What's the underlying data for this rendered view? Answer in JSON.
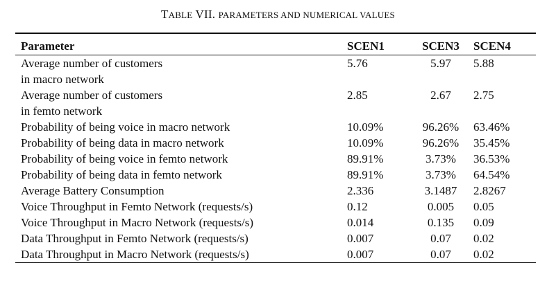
{
  "caption": {
    "prefix": "T",
    "word": "ABLE",
    "number": " VII. ",
    "title": "PARAMETERS AND NUMERICAL VALUES"
  },
  "table": {
    "headers": [
      "Parameter",
      "SCEN1",
      "SCEN3",
      "SCEN4"
    ],
    "rows": [
      {
        "param": [
          "Average number of customers",
          "in macro network"
        ],
        "values": [
          "5.76",
          "5.97",
          "5.88"
        ]
      },
      {
        "param": [
          "Average number of customers",
          "in femto network"
        ],
        "values": [
          "2.85",
          "2.67",
          "2.75"
        ]
      },
      {
        "param": [
          "Probability of being voice in macro network"
        ],
        "values": [
          "10.09%",
          "96.26%",
          "63.46%"
        ]
      },
      {
        "param": [
          "Probability of being data in macro network"
        ],
        "values": [
          "10.09%",
          "96.26%",
          "35.45%"
        ]
      },
      {
        "param": [
          "Probability of being voice in femto network"
        ],
        "values": [
          "89.91%",
          "3.73%",
          "36.53%"
        ]
      },
      {
        "param": [
          "Probability of being data in femto network"
        ],
        "values": [
          "89.91%",
          "3.73%",
          "64.54%"
        ]
      },
      {
        "param": [
          "Average Battery Consumption"
        ],
        "values": [
          "2.336",
          "3.1487",
          "2.8267"
        ]
      },
      {
        "param": [
          "Voice Throughput in Femto Network (requests/s)"
        ],
        "values": [
          "0.12",
          "0.005",
          "0.05"
        ]
      },
      {
        "param": [
          "Voice Throughput in Macro Network (requests/s)"
        ],
        "values": [
          "0.014",
          "0.135",
          "0.09"
        ]
      },
      {
        "param": [
          "Data Throughput in Femto Network (requests/s)"
        ],
        "values": [
          "0.007",
          "0.07",
          "0.02"
        ]
      },
      {
        "param": [
          "Data Throughput in Macro Network (requests/s)"
        ],
        "values": [
          "0.007",
          "0.07",
          "0.02"
        ]
      }
    ]
  }
}
